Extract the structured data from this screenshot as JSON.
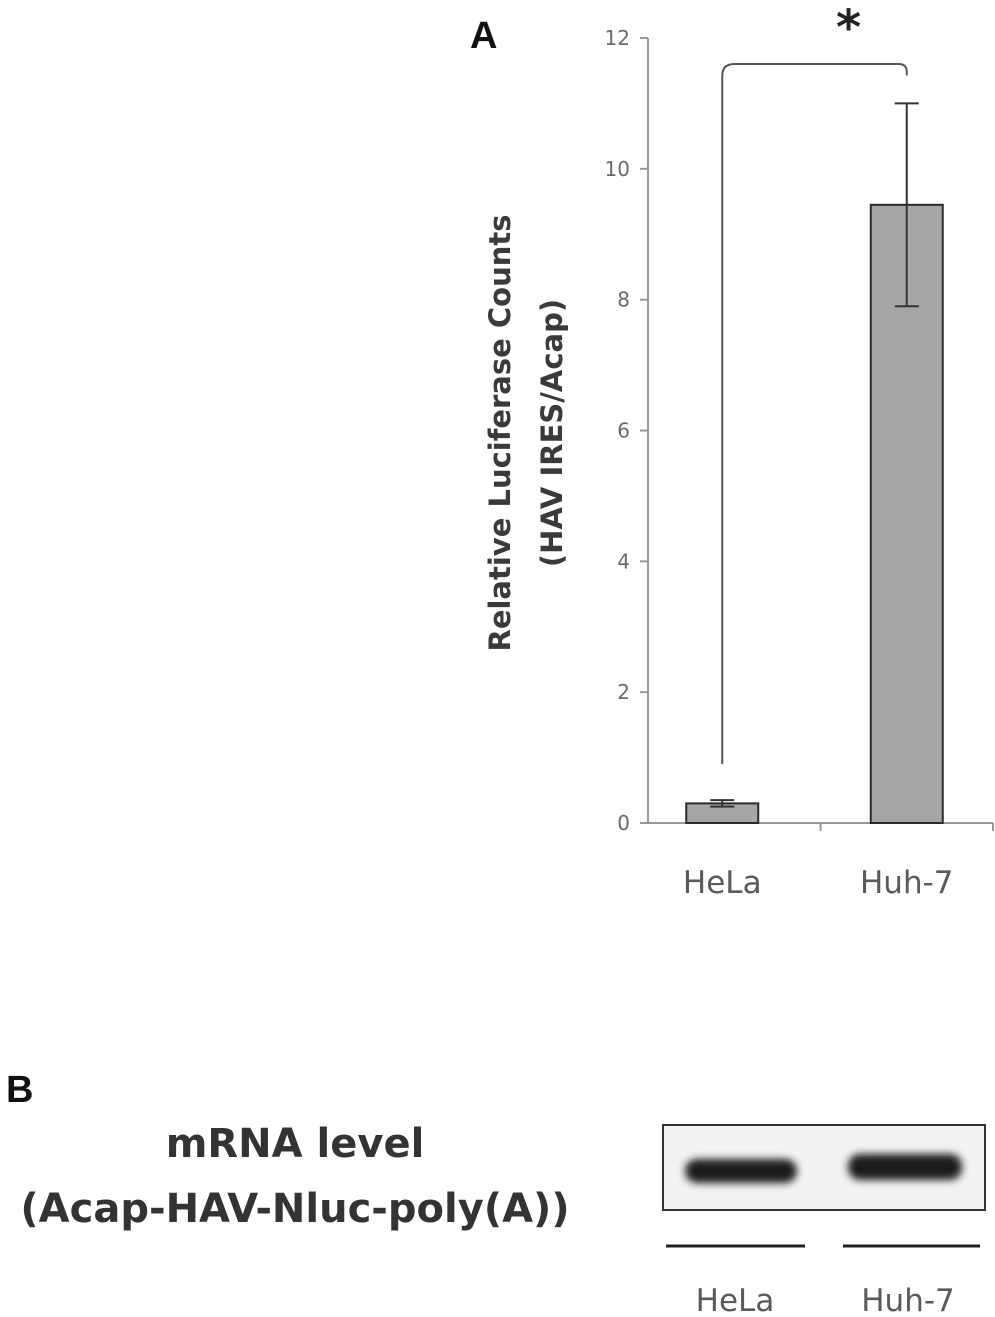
{
  "panels": {
    "a_label": "A",
    "b_label": "B"
  },
  "chart_data": {
    "type": "bar",
    "categories": [
      "HeLa",
      "Huh-7"
    ],
    "values": [
      0.3,
      9.45
    ],
    "errors": [
      0.05,
      1.55
    ],
    "ylim": [
      0,
      12
    ],
    "yticks": [
      0,
      2,
      4,
      6,
      8,
      10,
      12
    ],
    "ylabel_line1": "Relative Luciferase Counts",
    "ylabel_line2": "(HAV IRES/Acap)",
    "significance": "*",
    "bar_color": "#a6a6a6",
    "grid": false
  },
  "blot": {
    "title_line1": "mRNA level",
    "title_line2": "(Acap-HAV-Nluc-poly(A))",
    "lanes": [
      "HeLa",
      "Huh-7"
    ]
  }
}
